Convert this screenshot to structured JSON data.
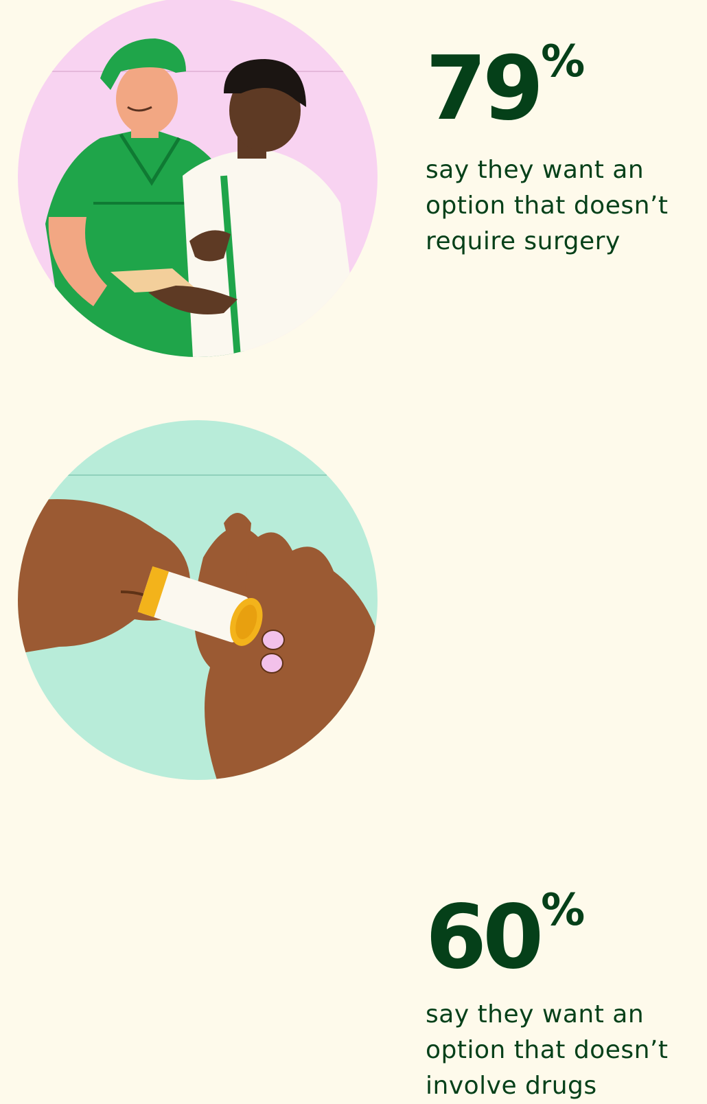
{
  "stats": [
    {
      "number": "79",
      "symbol": "%",
      "caption_lines": [
        "say they want an",
        "option that doesn’t",
        "require surgery"
      ],
      "illustration": "surgeon-and-doctor-illustration"
    },
    {
      "number": "60",
      "symbol": "%",
      "caption_lines": [
        "say they want an",
        "option that doesn’t",
        "involve drugs"
      ],
      "illustration": "pills-in-hand-illustration"
    }
  ],
  "colors": {
    "background": "#fefaeb",
    "text": "#054019",
    "circle_pink": "#f8d3f1",
    "circle_mint": "#b8ecd9",
    "scrubs_green": "#1fa54a",
    "skin_dark": "#9b5a33",
    "pill_pink": "#f2c1ea",
    "bottle_amber": "#f3b31b"
  }
}
